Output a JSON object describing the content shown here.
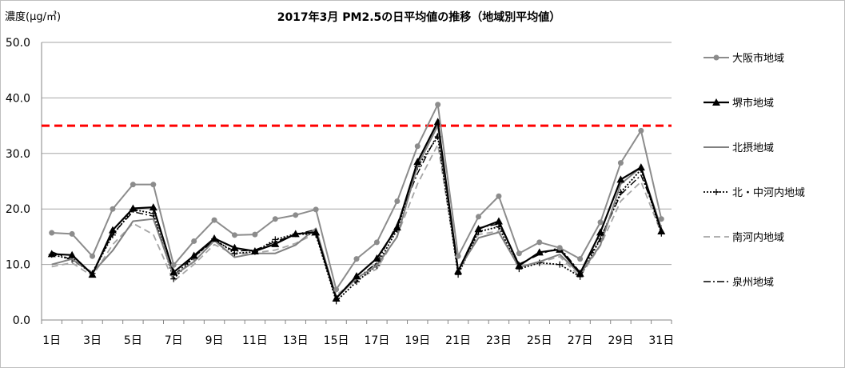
{
  "chart_data": {
    "type": "line",
    "title": "2017年3月  PM2.5の日平均値の推移（地域別平均値）",
    "ylabel": "濃度(μg/㎥)",
    "xlabel": "",
    "ylim": [
      0,
      50
    ],
    "yticks": [
      "0.0",
      "10.0",
      "20.0",
      "30.0",
      "40.0",
      "50.0"
    ],
    "x": [
      1,
      2,
      3,
      4,
      5,
      6,
      7,
      8,
      9,
      10,
      11,
      12,
      13,
      14,
      15,
      16,
      17,
      18,
      19,
      20,
      21,
      22,
      23,
      24,
      25,
      26,
      27,
      28,
      29,
      30,
      31
    ],
    "xtick_labels": [
      "1日",
      "3日",
      "5日",
      "7日",
      "9日",
      "11日",
      "13日",
      "15日",
      "17日",
      "19日",
      "21日",
      "23日",
      "25日",
      "27日",
      "29日",
      "31日"
    ],
    "reference_line": {
      "value": 35,
      "color": "#ff0000"
    },
    "grid": true,
    "legend_position": "right",
    "series": [
      {
        "name": "大阪市地域",
        "color": "#8c8c8c",
        "style": "solid-circle",
        "values": [
          15.7,
          15.5,
          11.5,
          20.0,
          24.4,
          24.4,
          9.9,
          14.2,
          18.0,
          15.3,
          15.4,
          18.2,
          18.9,
          19.9,
          5.5,
          11.0,
          14.0,
          21.4,
          31.3,
          38.8,
          11.5,
          18.6,
          22.3,
          12.0,
          14.0,
          13.0,
          11.0,
          17.6,
          28.3,
          34.1,
          18.2
        ]
      },
      {
        "name": "堺市地域",
        "color": "#000000",
        "style": "solid-triangle",
        "values": [
          11.9,
          11.7,
          8.2,
          16.2,
          20.1,
          20.3,
          8.6,
          11.6,
          14.7,
          13.0,
          12.4,
          13.7,
          15.5,
          15.8,
          3.9,
          7.9,
          11.1,
          16.7,
          28.5,
          35.7,
          8.8,
          16.4,
          17.8,
          9.8,
          12.2,
          12.7,
          8.4,
          15.8,
          25.3,
          27.5,
          16.0
        ]
      },
      {
        "name": "北摂地域",
        "color": "#808080",
        "style": "solid",
        "values": [
          10.0,
          11.0,
          8.5,
          12.5,
          17.8,
          18.2,
          8.0,
          10.5,
          14.3,
          11.3,
          12.0,
          12.0,
          13.5,
          16.5,
          4.0,
          7.5,
          9.8,
          15.0,
          27.8,
          35.0,
          9.0,
          14.8,
          15.8,
          9.5,
          10.5,
          11.8,
          8.3,
          13.5,
          24.5,
          27.5,
          16.5
        ]
      },
      {
        "name": "北・中河内地域",
        "color": "#000000",
        "style": "dotted-plus",
        "values": [
          11.8,
          10.9,
          8.4,
          15.3,
          19.9,
          19.2,
          7.4,
          11.3,
          14.6,
          12.0,
          12.3,
          14.5,
          15.5,
          15.4,
          3.4,
          6.9,
          9.8,
          16.3,
          27.6,
          33.0,
          8.2,
          15.9,
          16.8,
          9.2,
          10.3,
          10.0,
          7.8,
          14.6,
          23.0,
          27.1,
          15.6
        ]
      },
      {
        "name": "南河内地域",
        "color": "#a6a6a6",
        "style": "dashed",
        "values": [
          9.6,
          10.3,
          7.9,
          13.6,
          17.4,
          15.4,
          7.0,
          10.0,
          13.6,
          11.8,
          12.1,
          12.6,
          13.8,
          15.6,
          4.5,
          7.2,
          9.2,
          15.2,
          24.5,
          31.6,
          8.7,
          15.4,
          16.0,
          9.6,
          10.4,
          11.4,
          7.8,
          13.4,
          21.4,
          24.9,
          15.6
        ]
      },
      {
        "name": "泉州地域",
        "color": "#000000",
        "style": "dashdot",
        "values": [
          12.3,
          10.8,
          8.6,
          15.5,
          19.5,
          18.7,
          8.0,
          11.4,
          14.3,
          12.4,
          12.6,
          14.1,
          15.4,
          16.3,
          4.1,
          7.4,
          10.3,
          17.3,
          26.4,
          33.6,
          8.9,
          16.6,
          17.3,
          10.1,
          11.8,
          13.1,
          8.6,
          14.7,
          22.6,
          26.1,
          16.8
        ]
      }
    ]
  }
}
